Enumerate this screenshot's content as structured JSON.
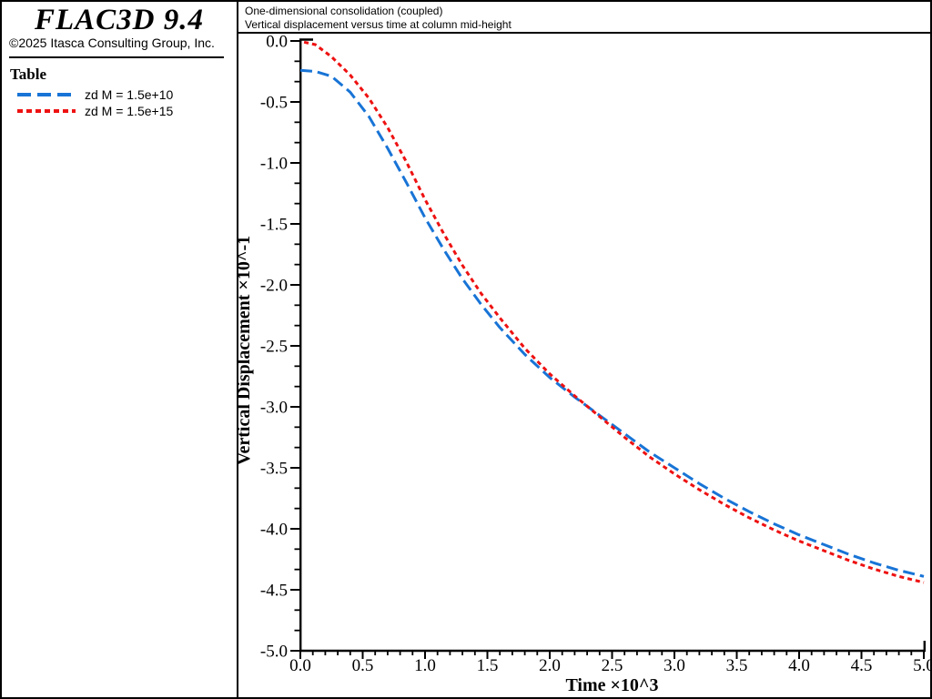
{
  "app": {
    "background": "#FFFFFF",
    "border_color": "#000000"
  },
  "sidebar": {
    "app_title": "FLAC3D 9.4",
    "copyright": "©2025 Itasca Consulting Group, Inc.",
    "section_title": "Table",
    "legend": [
      {
        "label": "zd M = 1.5e+10",
        "color": "#1874D6",
        "style": "long-dash"
      },
      {
        "label": "zd M = 1.5e+15",
        "color": "#EE1111",
        "style": "short-dash"
      }
    ]
  },
  "plot_header": {
    "line1": "One-dimensional consolidation (coupled)",
    "line2": "Vertical displacement versus time at column mid-height"
  },
  "chart_data": {
    "type": "line",
    "title": "One-dimensional consolidation (coupled)",
    "subtitle": "Vertical displacement versus time at column mid-height",
    "xlabel": "Time ×10^3",
    "ylabel": "Vertical Displacement ×10^-1",
    "xlim": [
      0.0,
      5.0
    ],
    "ylim": [
      -5.0,
      0.0
    ],
    "x_tick_labels": [
      "0.0",
      "0.5",
      "1.0",
      "1.5",
      "2.0",
      "2.5",
      "3.0",
      "3.5",
      "4.0",
      "4.5",
      "5.0"
    ],
    "y_tick_labels": [
      "0.0",
      "-0.5",
      "-1.0",
      "-1.5",
      "-2.0",
      "-2.5",
      "-3.0",
      "-3.5",
      "-4.0",
      "-4.5",
      "-5.0"
    ],
    "x_major_step": 0.5,
    "x_minor_step": 0.1,
    "y_major_step": 0.5,
    "y_minors_per_major": 2,
    "grid": false,
    "legend_position": "left-sidebar",
    "series": [
      {
        "name": "zd M = 1.5e+10",
        "color": "#1874D6",
        "dash": [
          13,
          6
        ],
        "width": 3,
        "x": [
          0.0,
          0.12,
          0.25,
          0.4,
          0.55,
          0.7,
          0.85,
          1.0,
          1.15,
          1.3,
          1.45,
          1.6,
          1.8,
          2.0,
          2.2,
          2.4,
          2.6,
          2.8,
          3.0,
          3.2,
          3.4,
          3.6,
          3.8,
          4.0,
          4.2,
          4.4,
          4.6,
          4.8,
          5.0
        ],
        "y": [
          -0.24,
          -0.25,
          -0.29,
          -0.42,
          -0.62,
          -0.88,
          -1.16,
          -1.45,
          -1.71,
          -1.95,
          -2.16,
          -2.35,
          -2.57,
          -2.76,
          -2.92,
          -3.07,
          -3.22,
          -3.37,
          -3.5,
          -3.63,
          -3.75,
          -3.86,
          -3.96,
          -4.05,
          -4.13,
          -4.21,
          -4.28,
          -4.34,
          -4.39
        ]
      },
      {
        "name": "zd M = 1.5e+15",
        "color": "#EE1111",
        "dash": [
          5,
          4
        ],
        "width": 3,
        "x": [
          0.03,
          0.12,
          0.25,
          0.4,
          0.55,
          0.7,
          0.85,
          1.0,
          1.15,
          1.3,
          1.45,
          1.6,
          1.8,
          2.0,
          2.2,
          2.4,
          2.6,
          2.8,
          3.0,
          3.2,
          3.4,
          3.6,
          3.8,
          4.0,
          4.2,
          4.4,
          4.6,
          4.8,
          5.0
        ],
        "y": [
          -0.01,
          -0.03,
          -0.13,
          -0.28,
          -0.47,
          -0.71,
          -0.99,
          -1.3,
          -1.58,
          -1.84,
          -2.07,
          -2.27,
          -2.52,
          -2.73,
          -2.91,
          -3.08,
          -3.25,
          -3.41,
          -3.55,
          -3.68,
          -3.8,
          -3.91,
          -4.01,
          -4.1,
          -4.18,
          -4.26,
          -4.33,
          -4.39,
          -4.44
        ]
      }
    ]
  }
}
